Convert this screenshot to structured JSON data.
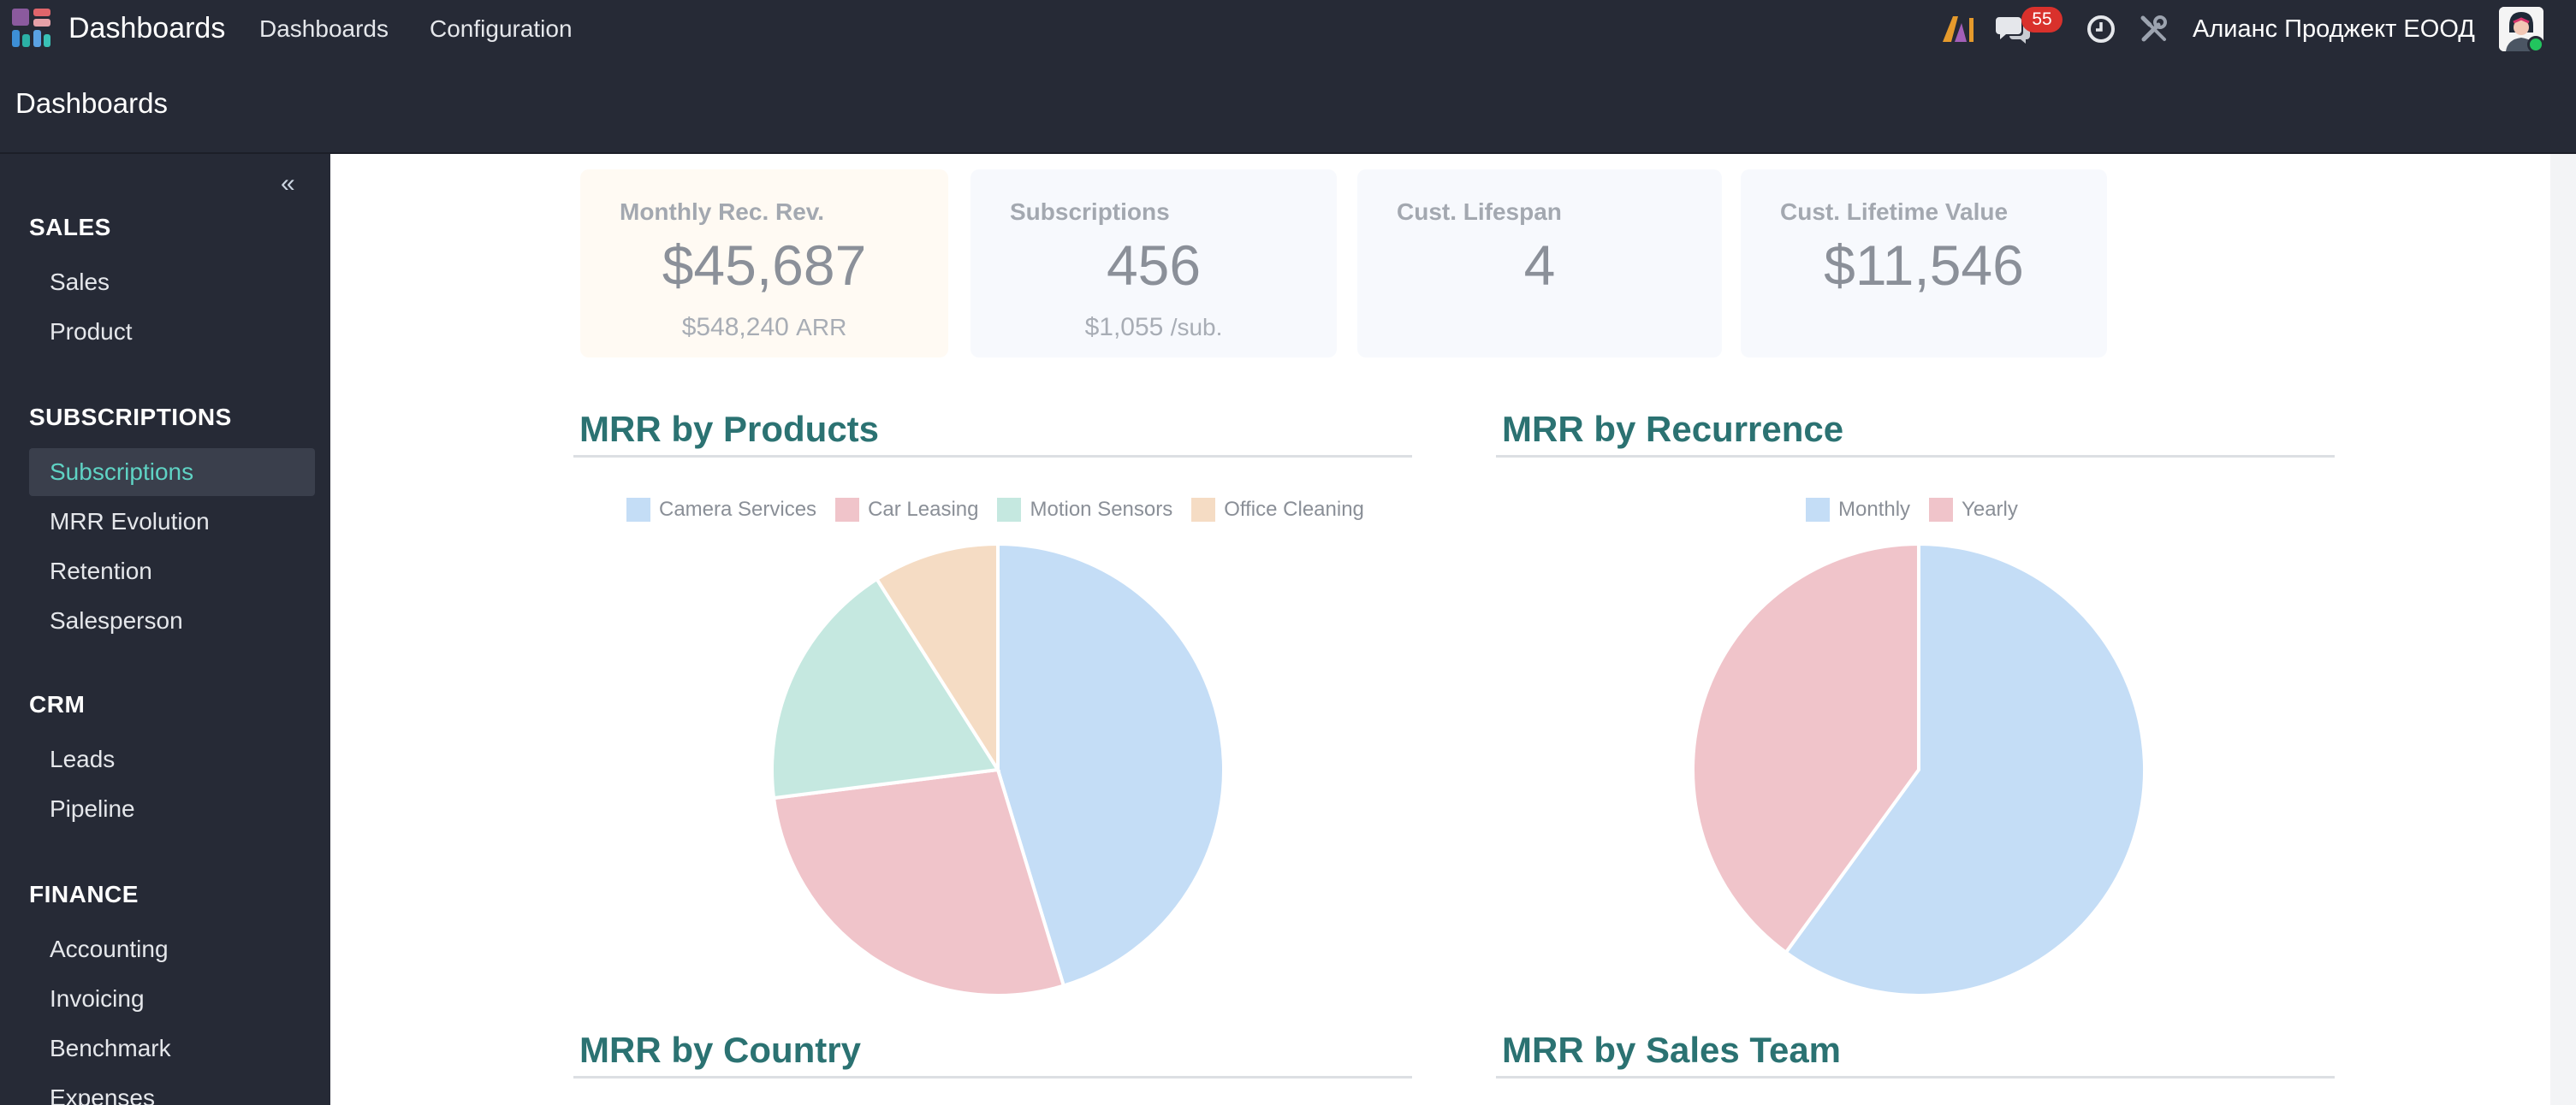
{
  "app": {
    "name": "Dashboards"
  },
  "topnav": {
    "items": [
      "Dashboards",
      "Configuration"
    ]
  },
  "systray": {
    "ai_icon": "ai-icon",
    "chat_badge": "55",
    "company": "Алианс Проджект ЕООД"
  },
  "breadcrumb": "Dashboards",
  "sidebar": {
    "collapse_symbol": "«",
    "sections": [
      {
        "title": "SALES",
        "items": [
          "Sales",
          "Product"
        ]
      },
      {
        "title": "SUBSCRIPTIONS",
        "items": [
          "Subscriptions",
          "MRR Evolution",
          "Retention",
          "Salesperson"
        ]
      },
      {
        "title": "CRM",
        "items": [
          "Leads",
          "Pipeline"
        ]
      },
      {
        "title": "FINANCE",
        "items": [
          "Accounting",
          "Invoicing",
          "Benchmark",
          "Expenses"
        ]
      }
    ],
    "active_item": "Subscriptions"
  },
  "kpis": [
    {
      "label": "Monthly Rec. Rev.",
      "value": "$45,687",
      "sub_value": "$548,240",
      "sub_unit": "ARR",
      "color": "#fffaf3"
    },
    {
      "label": "Subscriptions",
      "value": "456",
      "sub_value": "$1,055",
      "sub_unit": "/sub.",
      "color": "#f7f9fd"
    },
    {
      "label": "Cust. Lifespan",
      "value": "4",
      "sub_value": "",
      "sub_unit": "",
      "color": "#f7f9fd"
    },
    {
      "label": "Cust. Lifetime Value",
      "value": "$11,546",
      "sub_value": "",
      "sub_unit": "",
      "color": "#f7f9fd"
    }
  ],
  "section_titles": {
    "by_products": "MRR by Products",
    "by_recurrence": "MRR by Recurrence",
    "by_country": "MRR by Country",
    "by_sales_team": "MRR by Sales Team"
  },
  "chart_data": [
    {
      "type": "pie",
      "title": "MRR by Products",
      "categories": [
        "Camera Services",
        "Car Leasing",
        "Motion Sensors",
        "Office Cleaning"
      ],
      "values": [
        45.3,
        27.7,
        18.0,
        9.0
      ],
      "colors": [
        "#c4ddf6",
        "#f0c4ca",
        "#c5e8e0",
        "#f5dcc4"
      ],
      "legend": "top"
    },
    {
      "type": "pie",
      "title": "MRR by Recurrence",
      "categories": [
        "Monthly",
        "Yearly"
      ],
      "values": [
        60,
        40
      ],
      "colors": [
        "#c4ddf6",
        "#f0c4ca"
      ],
      "legend": "top"
    }
  ]
}
